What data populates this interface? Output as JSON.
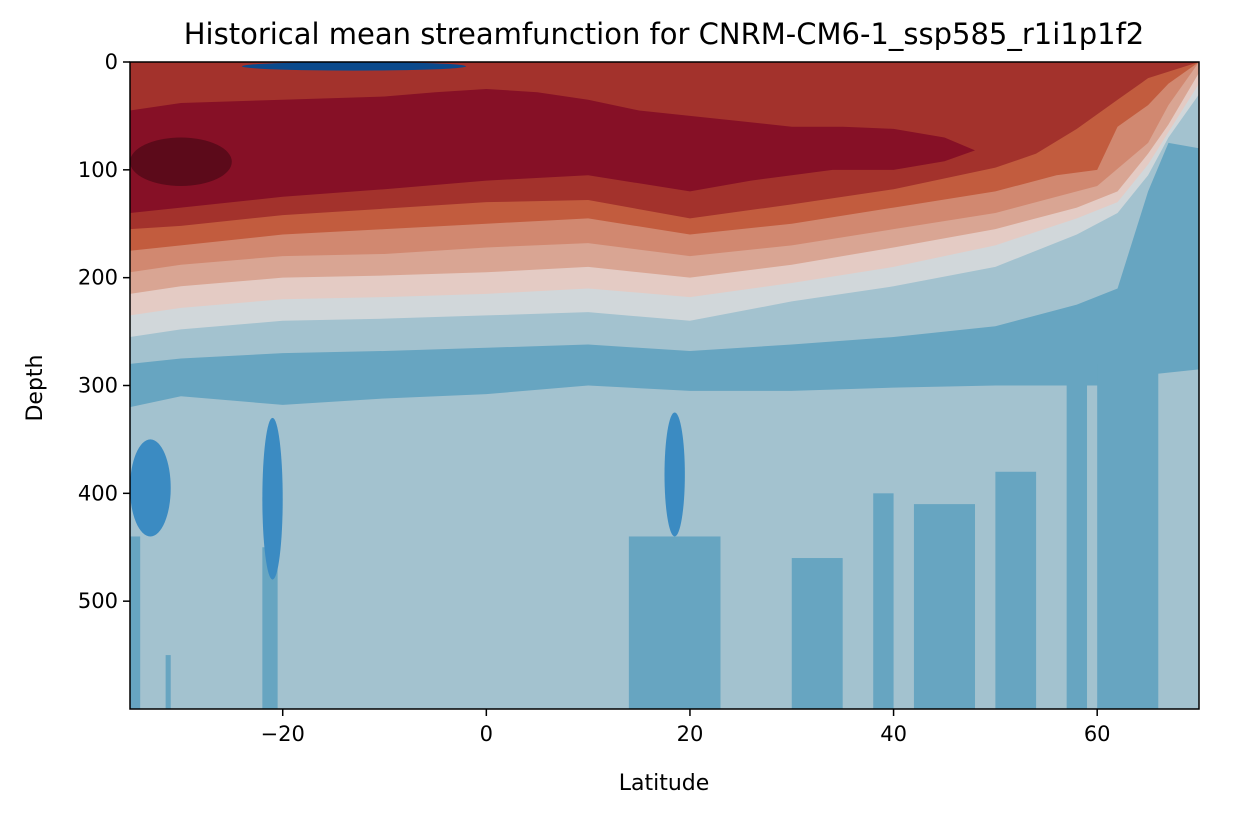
{
  "chart_data": {
    "type": "heatmap",
    "title": "Historical mean streamfunction for CNRM-CM6-1_ssp585_r1i1p1f2",
    "xlabel": "Latitude",
    "ylabel": "Depth",
    "xlim": [
      -35,
      70
    ],
    "ylim": [
      600,
      0
    ],
    "x_ticks": [
      -20,
      0,
      20,
      40,
      60
    ],
    "y_ticks": [
      0,
      100,
      200,
      300,
      400,
      500
    ],
    "x_tick_labels": [
      "−20",
      "0",
      "20",
      "40",
      "60"
    ],
    "y_tick_labels": [
      "0",
      "100",
      "200",
      "300",
      "400",
      "500"
    ],
    "colormap": "RdBu_r",
    "grid": false,
    "layers": [
      {
        "level": -3,
        "color": "#67a5c1",
        "boundary": [
          [
            -35,
            320
          ],
          [
            -30,
            310
          ],
          [
            -20,
            318
          ],
          [
            -10,
            312
          ],
          [
            0,
            308
          ],
          [
            10,
            300
          ],
          [
            20,
            305
          ],
          [
            30,
            305
          ],
          [
            40,
            302
          ],
          [
            50,
            300
          ],
          [
            55,
            300
          ],
          [
            60,
            300
          ],
          [
            65,
            290
          ],
          [
            70,
            285
          ]
        ]
      },
      {
        "level": -2,
        "color": "#a3c2cf",
        "boundary": [
          [
            -35,
            280
          ],
          [
            -30,
            275
          ],
          [
            -20,
            270
          ],
          [
            -10,
            268
          ],
          [
            0,
            265
          ],
          [
            10,
            262
          ],
          [
            20,
            268
          ],
          [
            30,
            262
          ],
          [
            40,
            255
          ],
          [
            50,
            245
          ],
          [
            58,
            225
          ],
          [
            62,
            210
          ],
          [
            65,
            120
          ],
          [
            67,
            75
          ],
          [
            70,
            80
          ]
        ]
      },
      {
        "level": -1,
        "color": "#d1d7da",
        "boundary": [
          [
            -35,
            255
          ],
          [
            -30,
            248
          ],
          [
            -20,
            240
          ],
          [
            -10,
            238
          ],
          [
            0,
            235
          ],
          [
            10,
            232
          ],
          [
            20,
            240
          ],
          [
            30,
            222
          ],
          [
            40,
            208
          ],
          [
            50,
            190
          ],
          [
            58,
            160
          ],
          [
            62,
            140
          ],
          [
            65,
            105
          ],
          [
            67,
            70
          ],
          [
            70,
            30
          ]
        ]
      },
      {
        "level": 0,
        "color": "#e4cbc4",
        "boundary": [
          [
            -35,
            235
          ],
          [
            -30,
            228
          ],
          [
            -20,
            220
          ],
          [
            -10,
            218
          ],
          [
            0,
            215
          ],
          [
            10,
            210
          ],
          [
            20,
            218
          ],
          [
            30,
            205
          ],
          [
            40,
            190
          ],
          [
            50,
            170
          ],
          [
            58,
            145
          ],
          [
            62,
            130
          ],
          [
            65,
            95
          ],
          [
            67,
            65
          ],
          [
            70,
            20
          ]
        ]
      },
      {
        "level": 1,
        "color": "#d9a593",
        "boundary": [
          [
            -35,
            215
          ],
          [
            -30,
            208
          ],
          [
            -20,
            200
          ],
          [
            -10,
            198
          ],
          [
            0,
            195
          ],
          [
            10,
            190
          ],
          [
            20,
            200
          ],
          [
            30,
            188
          ],
          [
            40,
            172
          ],
          [
            50,
            155
          ],
          [
            58,
            135
          ],
          [
            62,
            120
          ],
          [
            65,
            85
          ],
          [
            67,
            58
          ],
          [
            70,
            10
          ]
        ]
      },
      {
        "level": 2,
        "color": "#d18870",
        "boundary": [
          [
            -35,
            195
          ],
          [
            -30,
            188
          ],
          [
            -20,
            180
          ],
          [
            -10,
            178
          ],
          [
            0,
            172
          ],
          [
            10,
            168
          ],
          [
            20,
            180
          ],
          [
            30,
            170
          ],
          [
            40,
            155
          ],
          [
            50,
            140
          ],
          [
            56,
            125
          ],
          [
            60,
            115
          ],
          [
            65,
            75
          ],
          [
            67,
            40
          ],
          [
            70,
            0
          ]
        ]
      },
      {
        "level": 3,
        "color": "#c25c3e",
        "boundary": [
          [
            -35,
            175
          ],
          [
            -30,
            170
          ],
          [
            -20,
            160
          ],
          [
            -10,
            155
          ],
          [
            0,
            150
          ],
          [
            10,
            145
          ],
          [
            20,
            160
          ],
          [
            30,
            150
          ],
          [
            40,
            135
          ],
          [
            50,
            120
          ],
          [
            56,
            105
          ],
          [
            60,
            100
          ],
          [
            62,
            60
          ],
          [
            65,
            40
          ],
          [
            67,
            20
          ],
          [
            70,
            0
          ]
        ]
      },
      {
        "level": 4,
        "color": "#a3322c",
        "boundary": [
          [
            -35,
            155
          ],
          [
            -30,
            152
          ],
          [
            -20,
            142
          ],
          [
            -10,
            136
          ],
          [
            0,
            130
          ],
          [
            10,
            128
          ],
          [
            20,
            145
          ],
          [
            30,
            132
          ],
          [
            40,
            118
          ],
          [
            50,
            98
          ],
          [
            54,
            85
          ],
          [
            58,
            62
          ],
          [
            62,
            35
          ],
          [
            65,
            15
          ],
          [
            70,
            0
          ]
        ]
      },
      {
        "level": 5,
        "color": "#861026",
        "boundary": [
          [
            -35,
            140
          ],
          [
            -30,
            135
          ],
          [
            -20,
            125
          ],
          [
            -10,
            118
          ],
          [
            0,
            110
          ],
          [
            10,
            105
          ],
          [
            20,
            120
          ],
          [
            26,
            110
          ],
          [
            30,
            105
          ],
          [
            34,
            100
          ],
          [
            40,
            100
          ],
          [
            45,
            92
          ],
          [
            48,
            82
          ],
          [
            45,
            70
          ],
          [
            40,
            62
          ],
          [
            35,
            60
          ],
          [
            30,
            60
          ],
          [
            25,
            55
          ],
          [
            20,
            50
          ],
          [
            15,
            45
          ],
          [
            10,
            35
          ],
          [
            5,
            28
          ],
          [
            0,
            25
          ],
          [
            -5,
            28
          ],
          [
            -10,
            32
          ],
          [
            -20,
            35
          ],
          [
            -30,
            38
          ],
          [
            -35,
            45
          ]
        ]
      }
    ],
    "features": [
      {
        "value": "core-max",
        "color": "#5c0a1a",
        "x_range": [
          -35,
          -25
        ],
        "depth_range": [
          70,
          115
        ]
      },
      {
        "value": "surface-negative",
        "color": "#0b4a8c",
        "x_range": [
          -24,
          -2
        ],
        "depth_range": [
          0,
          8
        ]
      },
      {
        "value": "surface-positive",
        "color": "#a3322c",
        "x_range": [
          8,
          16
        ],
        "depth_range": [
          0,
          8
        ]
      },
      {
        "value": "deep-negative",
        "color": "#3b8bc2",
        "x_range": [
          -35,
          -31
        ],
        "depth_range": [
          350,
          440
        ]
      },
      {
        "value": "deep-negative",
        "color": "#3b8bc2",
        "x_range": [
          -22,
          -20
        ],
        "depth_range": [
          330,
          480
        ]
      },
      {
        "value": "deep-negative",
        "color": "#3b8bc2",
        "x_range": [
          17.5,
          19.5
        ],
        "depth_range": [
          325,
          440
        ]
      }
    ],
    "deep_bands": [
      {
        "color": "#67a5c1",
        "x_range": [
          -22,
          -20.5
        ],
        "depth_top": 450
      },
      {
        "color": "#67a5c1",
        "x_range": [
          14,
          23
        ],
        "depth_top": 440
      },
      {
        "color": "#67a5c1",
        "x_range": [
          -35,
          -34
        ],
        "depth_top": 440
      },
      {
        "color": "#67a5c1",
        "x_range": [
          -31.5,
          -31
        ],
        "depth_top": 550
      },
      {
        "color": "#67a5c1",
        "x_range": [
          30,
          35
        ],
        "depth_top": 460
      },
      {
        "color": "#67a5c1",
        "x_range": [
          38,
          40
        ],
        "depth_top": 400
      },
      {
        "color": "#67a5c1",
        "x_range": [
          42,
          48
        ],
        "depth_top": 410
      },
      {
        "color": "#67a5c1",
        "x_range": [
          50,
          54
        ],
        "depth_top": 380
      },
      {
        "color": "#67a5c1",
        "x_range": [
          57,
          59
        ],
        "depth_top": 300
      },
      {
        "color": "#67a5c1",
        "x_range": [
          60,
          66
        ],
        "depth_top": 280
      }
    ]
  }
}
